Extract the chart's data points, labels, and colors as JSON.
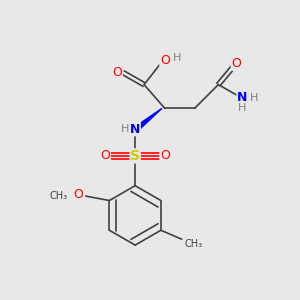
{
  "background_color": "#e8e8e8",
  "atom_colors": {
    "C": "#404040",
    "H": "#808080",
    "N": "#0000ff",
    "O": "#ff0000",
    "S": "#cccc00"
  },
  "bond_color": "#404040",
  "ring_color": "#404040",
  "font_size_atoms": 9,
  "font_size_small": 7
}
